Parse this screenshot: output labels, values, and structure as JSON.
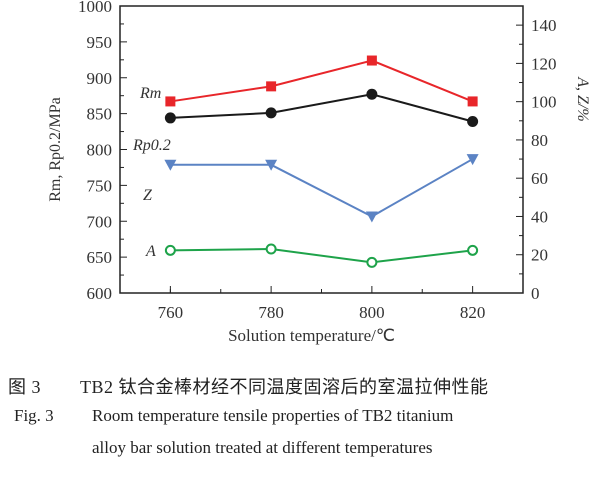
{
  "chart_data": {
    "type": "line",
    "x": [
      760,
      780,
      800,
      820
    ],
    "xlabel": "Solution temperature/℃",
    "xlim": [
      750,
      830
    ],
    "xticks": [
      "760",
      "780",
      "800",
      "820"
    ],
    "ylabel_left": "Rm, Rp0.2/MPa",
    "ylim_left": [
      600,
      1000
    ],
    "yticks_left": [
      "600",
      "650",
      "700",
      "750",
      "800",
      "850",
      "900",
      "950",
      "1000"
    ],
    "ylabel_right": "A, Z/%",
    "ylim_right": [
      0,
      150
    ],
    "yticks_right": [
      "0",
      "20",
      "40",
      "60",
      "80",
      "100",
      "120",
      "140"
    ],
    "grid": false,
    "legend": "inline labels",
    "series": [
      {
        "name": "Rm",
        "axis": "left",
        "values": [
          867,
          888,
          924,
          867
        ],
        "color": "#e8262a",
        "marker": "square"
      },
      {
        "name": "Rp0.2",
        "axis": "left",
        "values": [
          844,
          851,
          877,
          839
        ],
        "color": "#1a1a1a",
        "marker": "circle"
      },
      {
        "name": "Z",
        "axis": "right",
        "values": [
          67,
          67,
          40,
          70
        ],
        "color": "#5b83c4",
        "marker": "triangle-down"
      },
      {
        "name": "A",
        "axis": "right",
        "values": [
          22.3,
          23,
          16,
          22.3
        ],
        "color": "#1ea34a",
        "marker": "open-circle"
      }
    ]
  },
  "caption": {
    "cn_num": "图 3",
    "cn_text": "TB2 钛合金棒材经不同温度固溶后的室温拉伸性能",
    "en_num": "Fig. 3",
    "en_line1": "Room temperature tensile properties of TB2 titanium",
    "en_line2": "alloy bar solution treated at different temperatures"
  }
}
